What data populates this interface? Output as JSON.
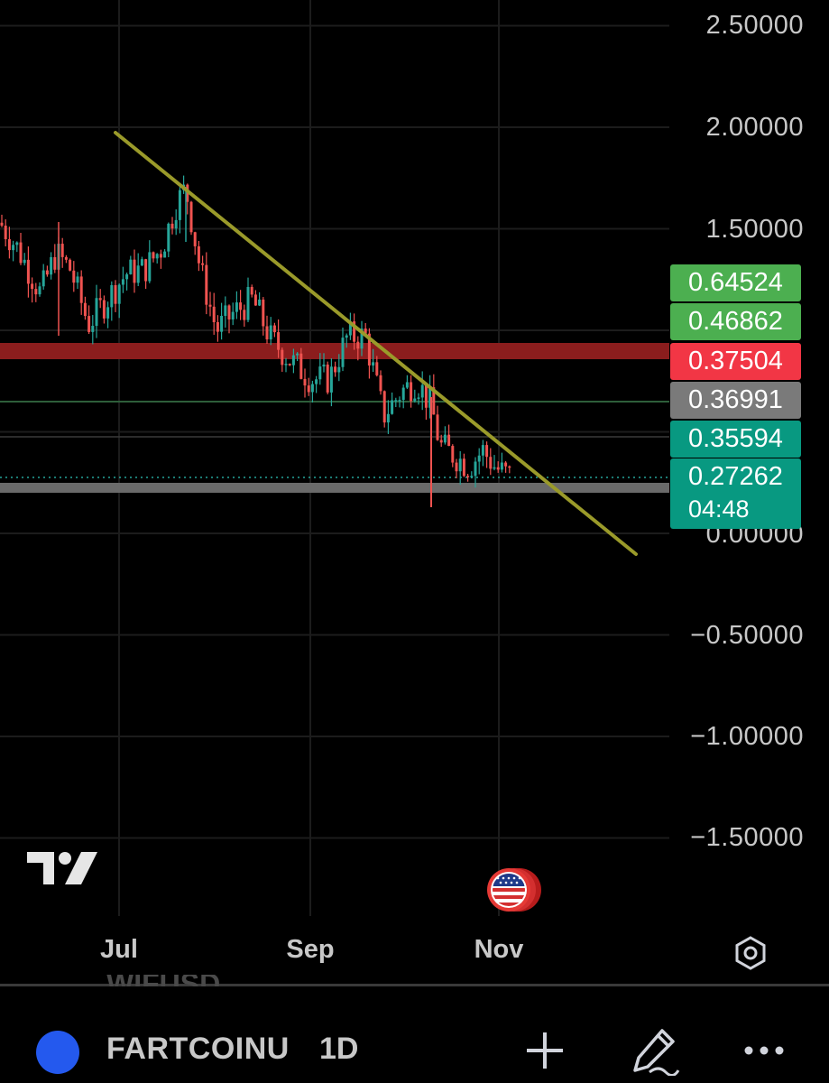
{
  "price_axis": {
    "labels": [
      "2.50000",
      "2.00000",
      "1.50000",
      "0.00000",
      "−0.50000",
      "−1.00000",
      "−1.50000"
    ]
  },
  "time_axis": {
    "labels": [
      "Jul",
      "Sep",
      "Nov"
    ]
  },
  "price_tags": [
    {
      "value": "0.64524",
      "color": "#4caf50"
    },
    {
      "value": "0.46862",
      "color": "#4caf50"
    },
    {
      "value": "0.37504",
      "color": "#f23645"
    },
    {
      "value": "0.36991",
      "color": "#7a7a7a"
    },
    {
      "value": "0.35594",
      "color": "#089981"
    }
  ],
  "current_price": {
    "value": "0.27262",
    "countdown": "04:48",
    "color": "#089981"
  },
  "toolbar": {
    "ghost_symbol": "WIFUSD",
    "symbol": "FARTCOINU",
    "interval": "1D"
  },
  "colors": {
    "up": "#26a69a",
    "down": "#ef5350",
    "trendline": "#9a9a2a",
    "resistance_zone": "#8b1d1d",
    "background": "#000000"
  },
  "icons": [
    "tradingview-logo-icon",
    "us-flag-icon",
    "settings-icon",
    "plus-icon",
    "pencil-icon",
    "more-icon"
  ]
}
